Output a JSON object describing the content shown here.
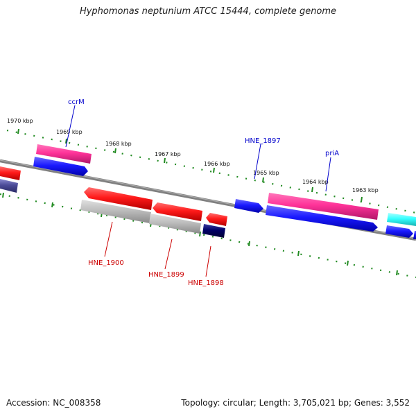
{
  "header": {
    "title": "Hyphomonas neptunium ATCC 15444, complete genome"
  },
  "footer": {
    "accession": "Accession: NC_008358",
    "topology": "Topology: circular; Length: 3,705,021 bp; Genes: 3,552"
  },
  "map": {
    "kbp_labels": [
      "1970 kbp",
      "1969 kbp",
      "1968 kbp",
      "1967 kbp",
      "1966 kbp",
      "1965 kbp",
      "1964 kbp",
      "1963 kbp"
    ],
    "forward_gene_labels": [
      "ccrM",
      "HNE_1897",
      "priA"
    ],
    "reverse_gene_labels": [
      "HNE_1900",
      "HNE_1899",
      "HNE_1898"
    ]
  },
  "colors": {
    "forward_label": "#0000cc",
    "reverse_label": "#cc0000",
    "backbone": "#808080",
    "tick": "#228b22",
    "gene_red": "#ff1a1a",
    "gene_pink": "#ff3399",
    "gene_blue": "#1a1aff",
    "gene_gray": "#b8b8b8",
    "gene_navy": "#000066",
    "gene_cyan": "#33ffff",
    "gene_slate": "#4b4b99"
  }
}
